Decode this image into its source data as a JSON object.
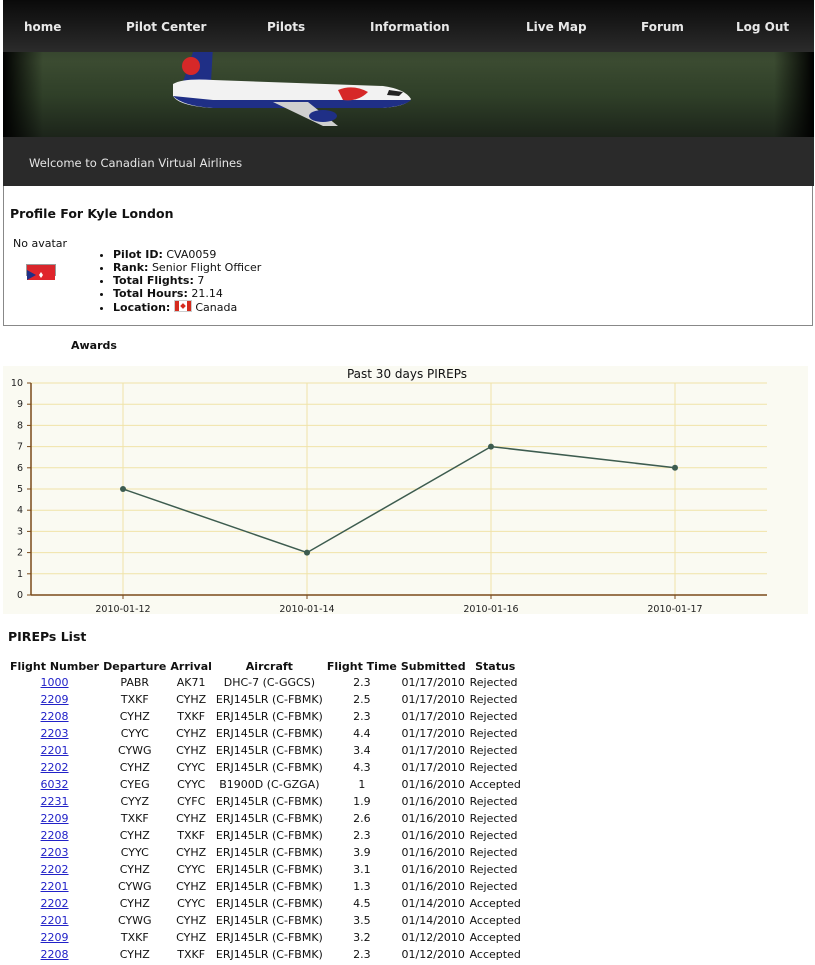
{
  "nav": {
    "items": [
      {
        "label": "home"
      },
      {
        "label": "Pilot Center"
      },
      {
        "label": "Pilots"
      },
      {
        "label": "Information"
      },
      {
        "label": "Live Map"
      },
      {
        "label": "Forum"
      },
      {
        "label": "Log Out"
      }
    ]
  },
  "welcome": "Welcome to Canadian Virtual Airlines",
  "profile": {
    "title": "Profile For Kyle London",
    "no_avatar": "No avatar",
    "fields": [
      {
        "label": "Pilot ID:",
        "value": "CVA0059"
      },
      {
        "label": "Rank:",
        "value": "Senior Flight Officer"
      },
      {
        "label": "Total Flights:",
        "value": "7"
      },
      {
        "label": "Total Hours:",
        "value": "21.14"
      },
      {
        "label": "Location:",
        "value": "Canada"
      }
    ]
  },
  "awards_title": "Awards",
  "chart_data": {
    "type": "line",
    "title": "Past 30 days PIREPs",
    "categories": [
      "2010-01-12",
      "2010-01-14",
      "2010-01-16",
      "2010-01-17"
    ],
    "values": [
      5,
      2,
      7,
      6
    ],
    "ylim": [
      0,
      10
    ],
    "yticks": [
      0,
      1,
      2,
      3,
      4,
      5,
      6,
      7,
      8,
      9,
      10
    ],
    "grid": true,
    "line_color": "#3d5c4f",
    "grid_color": "#f0e3a8",
    "axis_color": "#7a4a1a"
  },
  "pireps": {
    "title": "PIREPs List",
    "headers": [
      "Flight Number",
      "Departure",
      "Arrival",
      "Aircraft",
      "Flight Time",
      "Submitted",
      "Status"
    ],
    "rows": [
      [
        "1000",
        "PABR",
        "AK71",
        "DHC-7 (C-GGCS)",
        "2.3",
        "01/17/2010",
        "Rejected"
      ],
      [
        "2209",
        "TXKF",
        "CYHZ",
        "ERJ145LR (C-FBMK)",
        "2.5",
        "01/17/2010",
        "Rejected"
      ],
      [
        "2208",
        "CYHZ",
        "TXKF",
        "ERJ145LR (C-FBMK)",
        "2.3",
        "01/17/2010",
        "Rejected"
      ],
      [
        "2203",
        "CYYC",
        "CYHZ",
        "ERJ145LR (C-FBMK)",
        "4.4",
        "01/17/2010",
        "Rejected"
      ],
      [
        "2201",
        "CYWG",
        "CYHZ",
        "ERJ145LR (C-FBMK)",
        "3.4",
        "01/17/2010",
        "Rejected"
      ],
      [
        "2202",
        "CYHZ",
        "CYYC",
        "ERJ145LR (C-FBMK)",
        "4.3",
        "01/17/2010",
        "Rejected"
      ],
      [
        "6032",
        "CYEG",
        "CYYC",
        "B1900D (C-GZGA)",
        "1",
        "01/16/2010",
        "Accepted"
      ],
      [
        "2231",
        "CYYZ",
        "CYFC",
        "ERJ145LR (C-FBMK)",
        "1.9",
        "01/16/2010",
        "Rejected"
      ],
      [
        "2209",
        "TXKF",
        "CYHZ",
        "ERJ145LR (C-FBMK)",
        "2.6",
        "01/16/2010",
        "Rejected"
      ],
      [
        "2208",
        "CYHZ",
        "TXKF",
        "ERJ145LR (C-FBMK)",
        "2.3",
        "01/16/2010",
        "Rejected"
      ],
      [
        "2203",
        "CYYC",
        "CYHZ",
        "ERJ145LR (C-FBMK)",
        "3.9",
        "01/16/2010",
        "Rejected"
      ],
      [
        "2202",
        "CYHZ",
        "CYYC",
        "ERJ145LR (C-FBMK)",
        "3.1",
        "01/16/2010",
        "Rejected"
      ],
      [
        "2201",
        "CYWG",
        "CYHZ",
        "ERJ145LR (C-FBMK)",
        "1.3",
        "01/16/2010",
        "Rejected"
      ],
      [
        "2202",
        "CYHZ",
        "CYYC",
        "ERJ145LR (C-FBMK)",
        "4.5",
        "01/14/2010",
        "Accepted"
      ],
      [
        "2201",
        "CYWG",
        "CYHZ",
        "ERJ145LR (C-FBMK)",
        "3.5",
        "01/14/2010",
        "Accepted"
      ],
      [
        "2209",
        "TXKF",
        "CYHZ",
        "ERJ145LR (C-FBMK)",
        "3.2",
        "01/12/2010",
        "Accepted"
      ],
      [
        "2208",
        "CYHZ",
        "TXKF",
        "ERJ145LR (C-FBMK)",
        "2.3",
        "01/12/2010",
        "Accepted"
      ]
    ]
  }
}
